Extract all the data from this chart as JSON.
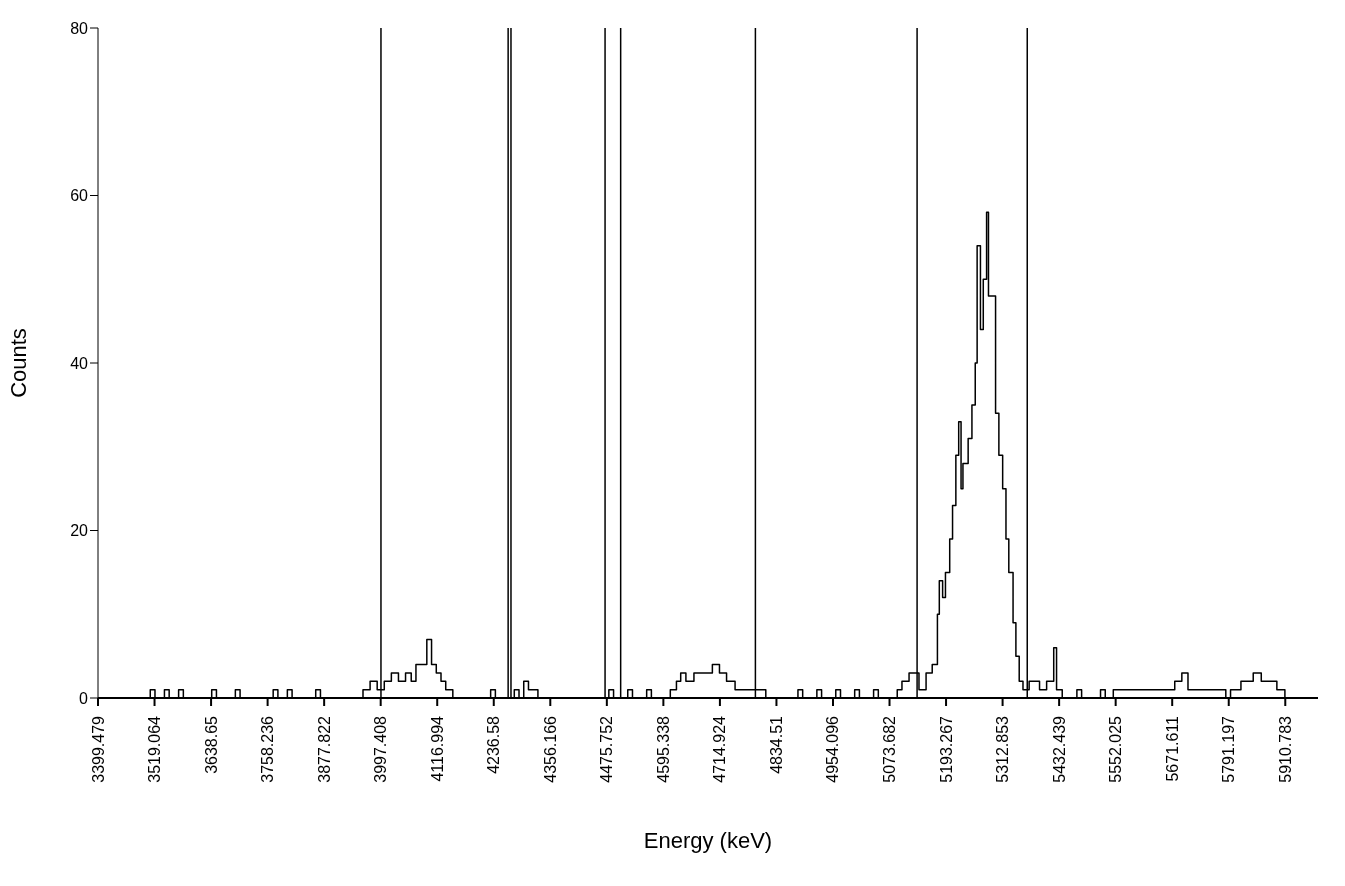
{
  "chart_data": {
    "type": "step",
    "xlabel": "Energy (keV)",
    "ylabel": "Counts",
    "xlim": [
      3399.479,
      5980
    ],
    "ylim": [
      0,
      80
    ],
    "xticks": [
      3399.479,
      3519.064,
      3638.65,
      3758.236,
      3877.822,
      3997.408,
      4116.994,
      4236.58,
      4356.166,
      4475.752,
      4595.338,
      4714.924,
      4834.51,
      4954.096,
      5073.682,
      5193.267,
      5312.853,
      5432.439,
      5552.025,
      5671.611,
      5791.197,
      5910.783
    ],
    "yticks": [
      0,
      20,
      40,
      60,
      80
    ],
    "grid": false,
    "legend": false,
    "x": [
      3400,
      3510,
      3520,
      3540,
      3550,
      3570,
      3580,
      3640,
      3650,
      3690,
      3700,
      3770,
      3780,
      3800,
      3810,
      3860,
      3870,
      3960,
      3975,
      3990,
      4005,
      4020,
      4035,
      4050,
      4062,
      4072,
      4085,
      4095,
      4105,
      4115,
      4125,
      4135,
      4150,
      4230,
      4240,
      4280,
      4290,
      4300,
      4310,
      4330,
      4480,
      4490,
      4520,
      4530,
      4560,
      4570,
      4610,
      4623,
      4632,
      4643,
      4660,
      4699,
      4714,
      4729,
      4747,
      4790,
      4812,
      4880,
      4890,
      4920,
      4930,
      4960,
      4970,
      5000,
      5010,
      5040,
      5050,
      5090,
      5100,
      5115,
      5136,
      5151,
      5164,
      5175,
      5179,
      5186,
      5192,
      5201,
      5207,
      5214,
      5220,
      5225,
      5229,
      5240,
      5248,
      5255,
      5259,
      5266,
      5272,
      5279,
      5283,
      5292,
      5298,
      5305,
      5313,
      5320,
      5326,
      5335,
      5341,
      5348,
      5356,
      5369,
      5391,
      5406,
      5421,
      5427,
      5439,
      5470,
      5480,
      5520,
      5530,
      5547,
      5677,
      5692,
      5705,
      5785,
      5795,
      5817,
      5843,
      5860,
      5893,
      5910
    ],
    "series": [
      {
        "color": "#000000",
        "values": [
          0,
          1,
          0,
          1,
          0,
          1,
          0,
          1,
          0,
          1,
          0,
          1,
          0,
          1,
          0,
          1,
          0,
          1,
          2,
          1,
          2,
          3,
          2,
          3,
          2,
          4,
          4,
          7,
          4,
          3,
          2,
          1,
          0,
          1,
          0,
          1,
          0,
          2,
          1,
          0,
          1,
          0,
          1,
          0,
          1,
          0,
          1,
          2,
          3,
          2,
          3,
          4,
          3,
          2,
          1,
          1,
          0,
          1,
          0,
          1,
          0,
          1,
          0,
          1,
          0,
          1,
          0,
          1,
          2,
          3,
          1,
          3,
          4,
          10,
          14,
          12,
          15,
          19,
          23,
          29,
          33,
          25,
          28,
          31,
          35,
          40,
          54,
          44,
          50,
          58,
          48,
          48,
          34,
          29,
          25,
          19,
          15,
          9,
          5,
          2,
          1,
          2,
          1,
          2,
          6,
          1,
          0,
          1,
          0,
          1,
          0,
          1,
          2,
          3,
          1,
          0,
          1,
          2,
          3,
          2,
          1,
          0
        ]
      }
    ],
    "ref_lines": [
      {
        "axis": "x",
        "value": 3998,
        "color": "#000000"
      },
      {
        "axis": "x",
        "value": 4267,
        "color": "#000000"
      },
      {
        "axis": "x",
        "value": 4273,
        "color": "#000000"
      },
      {
        "axis": "x",
        "value": 4472,
        "color": "#000000"
      },
      {
        "axis": "x",
        "value": 4505,
        "color": "#000000"
      },
      {
        "axis": "x",
        "value": 4790,
        "color": "#000000"
      },
      {
        "axis": "x",
        "value": 5132,
        "color": "#000000"
      },
      {
        "axis": "x",
        "value": 5365,
        "color": "#000000"
      }
    ]
  }
}
